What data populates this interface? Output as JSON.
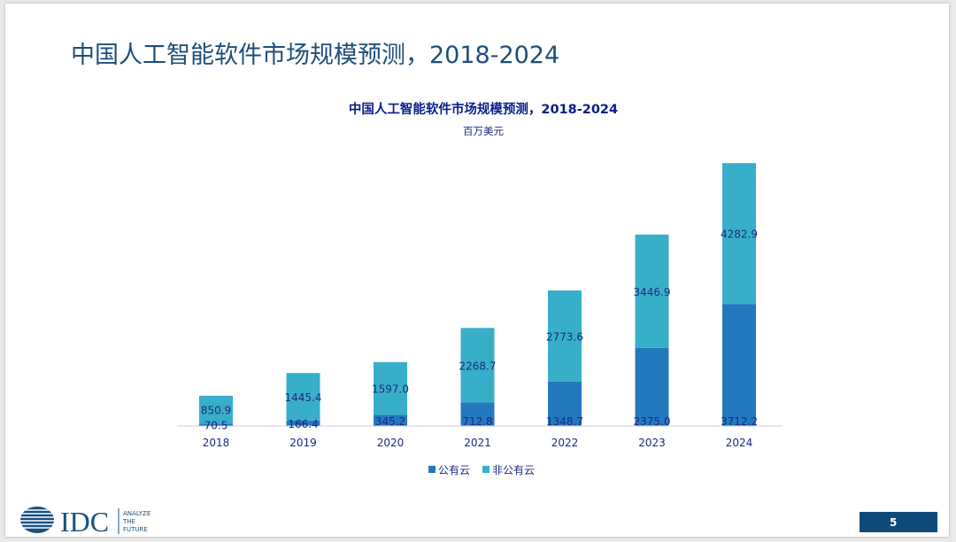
{
  "slide": {
    "title": "中国人工智能软件市场规模预测，2018-2024",
    "page_number": "5"
  },
  "logo": {
    "brand": "IDC",
    "tagline": [
      "ANALYZE",
      "THE",
      "FUTURE"
    ]
  },
  "colors": {
    "public_cloud": "#2478be",
    "non_public_cloud": "#38afc9",
    "title_blue": "#1f4e79",
    "chart_title": "#0a1e8c",
    "label_text": "#1a2a80"
  },
  "chart_data": {
    "type": "bar",
    "stacked": true,
    "title": "中国人工智能软件市场规模预测，2018-2024",
    "subtitle": "百万美元",
    "categories": [
      "2018",
      "2019",
      "2020",
      "2021",
      "2022",
      "2023",
      "2024"
    ],
    "series": [
      {
        "name": "公有云",
        "values": [
          70.5,
          166.4,
          345.2,
          712.8,
          1348.7,
          2375.0,
          3712.2
        ]
      },
      {
        "name": "非公有云",
        "values": [
          850.9,
          1445.4,
          1597.0,
          2268.7,
          2773.6,
          3446.9,
          4282.9
        ]
      }
    ],
    "value_labels": {
      "公有云": [
        "70.5",
        "166.4",
        "345.2",
        "712.8",
        "1348.7",
        "2375.0",
        "3712.2"
      ],
      "非公有云": [
        "850.9",
        "1445.4",
        "1597.0",
        "2268.7",
        "2773.6",
        "3446.9",
        "4282.9"
      ]
    },
    "ylim": [
      0,
      8000
    ],
    "legend": "bottom-center",
    "grid": false
  }
}
